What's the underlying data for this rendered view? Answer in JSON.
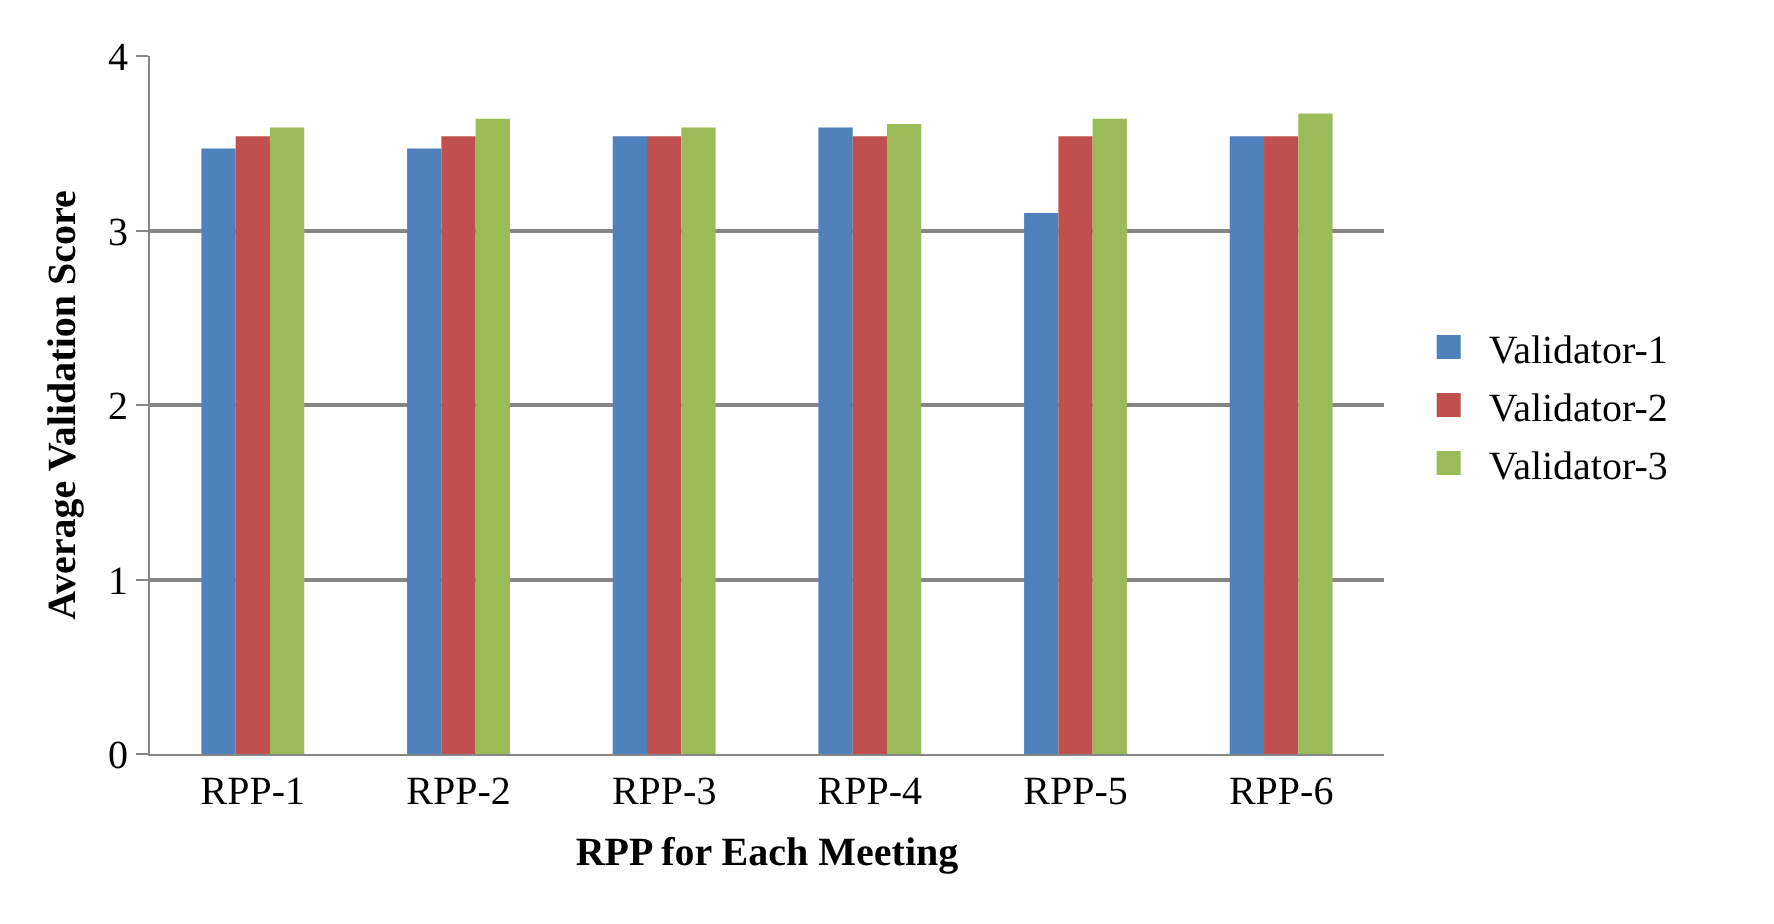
{
  "chart_data": {
    "type": "bar",
    "xlabel": "RPP for Each Meeting",
    "ylabel": "Average Validation Score",
    "categories": [
      "RPP-1",
      "RPP-2",
      "RPP-3",
      "RPP-4",
      "RPP-5",
      "RPP-6"
    ],
    "series": [
      {
        "name": "Validator-1",
        "color": "#4f81bd",
        "values": [
          3.47,
          3.47,
          3.54,
          3.59,
          3.1,
          3.54
        ]
      },
      {
        "name": "Validator-2",
        "color": "#c0504d",
        "values": [
          3.54,
          3.54,
          3.54,
          3.54,
          3.54,
          3.54
        ]
      },
      {
        "name": "Validator-3",
        "color": "#9bbb59",
        "values": [
          3.59,
          3.64,
          3.59,
          3.61,
          3.64,
          3.67
        ]
      }
    ],
    "ylim": [
      0,
      4
    ],
    "yticks": [
      0,
      1,
      2,
      3,
      4
    ],
    "grid": "y",
    "legend": "right"
  }
}
